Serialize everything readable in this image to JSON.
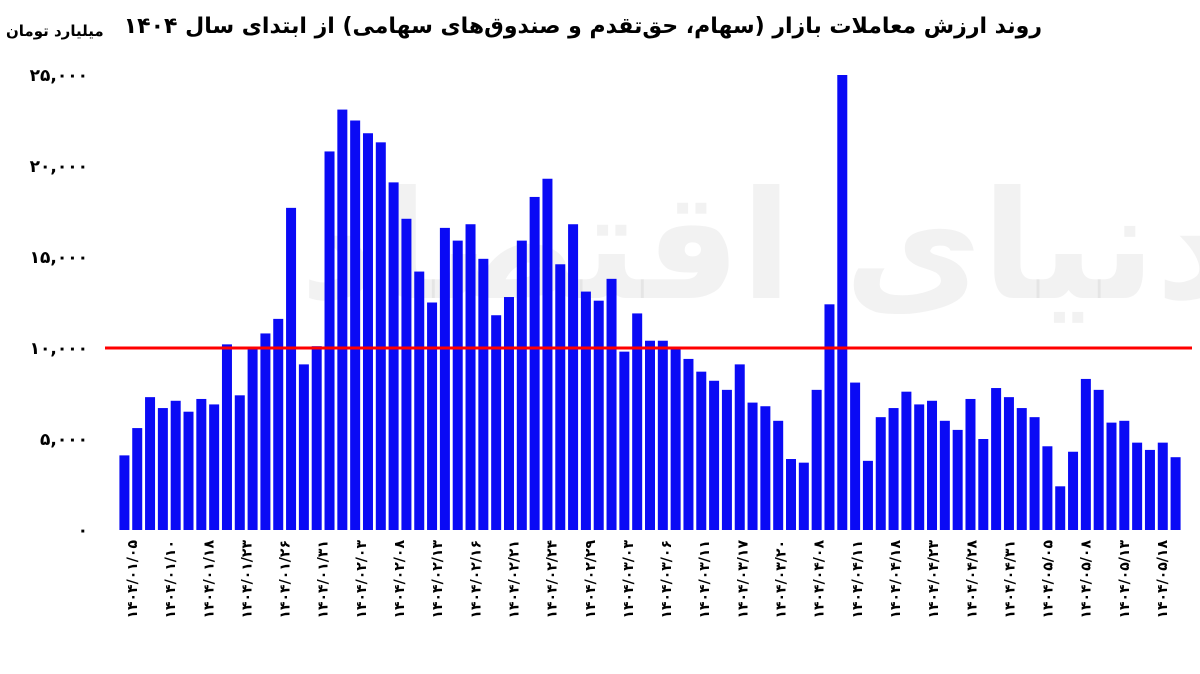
{
  "header": {
    "title": "روند ارزش معاملات بازار (سهام، حق‌تقدم و صندوق‌های سهامی) از ابتدای سال ۱۴۰۴",
    "unit_label": "میلیارد تومان",
    "watermark": "دنیای اقتصاد"
  },
  "chart_data": {
    "type": "bar",
    "title": "روند ارزش معاملات بازار (سهام، حق‌تقدم و صندوق‌های سهامی) از ابتدای سال ۱۴۰۴",
    "ylabel": "میلیارد تومان",
    "xlabel": "",
    "ylim": [
      0,
      25000
    ],
    "yticks": [
      0,
      5000,
      10000,
      15000,
      20000,
      25000
    ],
    "ytick_labels": [
      "۰",
      "۵,۰۰۰",
      "۱۰,۰۰۰",
      "۱۵,۰۰۰",
      "۲۰,۰۰۰",
      "۲۵,۰۰۰"
    ],
    "bar_color": "#0a0af5",
    "reference_line": {
      "value": 10000,
      "color": "#ff0000"
    },
    "grid": false,
    "x_tick_labels": [
      "۱۴۰۴/۰۱/۰۵",
      "۱۴۰۴/۰۱/۱۰",
      "۱۴۰۴/۰۱/۱۸",
      "۱۴۰۴/۰۱/۲۳",
      "۱۴۰۴/۰۱/۲۶",
      "۱۴۰۴/۰۱/۳۱",
      "۱۴۰۴/۰۲/۰۳",
      "۱۴۰۴/۰۲/۰۸",
      "۱۴۰۴/۰۲/۱۳",
      "۱۴۰۴/۰۲/۱۶",
      "۱۴۰۴/۰۲/۲۱",
      "۱۴۰۴/۰۲/۲۴",
      "۱۴۰۴/۰۲/۲۹",
      "۱۴۰۴/۰۳/۰۳",
      "۱۴۰۴/۰۳/۰۶",
      "۱۴۰۴/۰۳/۱۱",
      "۱۴۰۴/۰۳/۱۷",
      "۱۴۰۴/۰۳/۲۰",
      "۱۴۰۴/۰۴/۰۸",
      "۱۴۰۴/۰۴/۱۱",
      "۱۴۰۴/۰۴/۱۸",
      "۱۴۰۴/۰۴/۲۳",
      "۱۴۰۴/۰۴/۲۸",
      "۱۴۰۴/۰۴/۳۱",
      "۱۴۰۴/۰۵/۰۵",
      "۱۴۰۴/۰۵/۰۸",
      "۱۴۰۴/۰۵/۱۳",
      "۱۴۰۴/۰۵/۱۸"
    ],
    "values": [
      4100,
      5600,
      7300,
      6700,
      7100,
      6500,
      7200,
      6900,
      10200,
      7400,
      10000,
      10800,
      11600,
      17700,
      9100,
      10100,
      20800,
      23100,
      22500,
      21800,
      21300,
      19100,
      17100,
      14200,
      12500,
      16600,
      15900,
      16800,
      14900,
      11800,
      12800,
      15900,
      18300,
      19300,
      14600,
      16800,
      13100,
      12600,
      13800,
      9800,
      11900,
      10400,
      10400,
      10000,
      9400,
      8700,
      8200,
      7700,
      9100,
      7000,
      6800,
      6000,
      3900,
      3700,
      7700,
      12400,
      25000,
      8100,
      3800,
      6200,
      6700,
      7600,
      6900,
      7100,
      6000,
      5500,
      7200,
      5000,
      7800,
      7300,
      6700,
      6200,
      4600,
      2400,
      4300,
      8300,
      7700,
      5900,
      6000,
      4800,
      4400,
      4800,
      4000
    ]
  }
}
